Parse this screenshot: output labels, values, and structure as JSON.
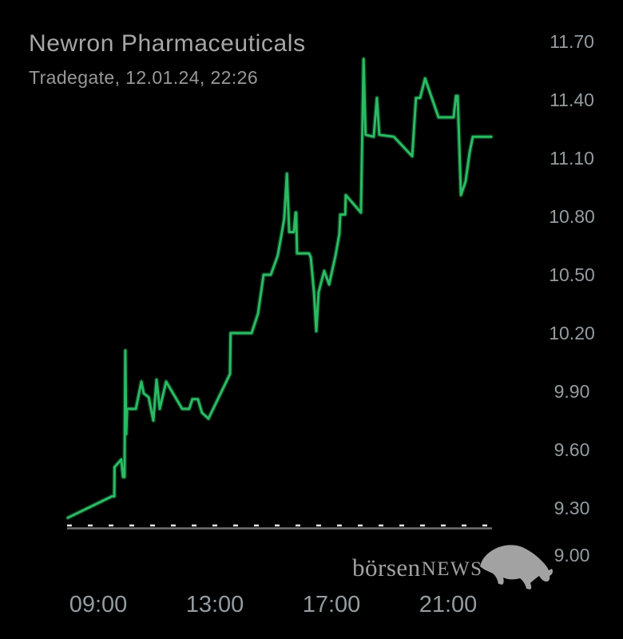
{
  "header": {
    "title": "Newron Pharmaceuticals",
    "subtitle": "Tradegate, 12.01.24, 22:26"
  },
  "watermark": {
    "text_primary": "börsen",
    "text_secondary": "NEWS",
    "icon": "bull-silhouette"
  },
  "colors": {
    "background": "#000000",
    "line": "#2abc63",
    "title": "#a7a7a7",
    "subtitle": "#989898",
    "axis_label": "#949ca0",
    "baseline": "#6f6f6f",
    "reference_dash": "#e4e4e4",
    "watermark": "#a2a2a2"
  },
  "chart_data": {
    "type": "line",
    "title": "Newron Pharmaceuticals",
    "subtitle": "Tradegate, 12.01.24, 22:26",
    "grid": false,
    "legend": false,
    "x_axis": {
      "kind": "time",
      "range_hours": [
        7.9,
        22.6
      ],
      "ticks": [
        {
          "label": "09:00",
          "hour": 9
        },
        {
          "label": "13:00",
          "hour": 13
        },
        {
          "label": "17:00",
          "hour": 17
        },
        {
          "label": "21:00",
          "hour": 21
        }
      ]
    },
    "y_axis": {
      "side": "right",
      "range": [
        9.0,
        11.7
      ],
      "ticks": [
        {
          "label": "11.70",
          "value": 11.7
        },
        {
          "label": "11.40",
          "value": 11.4
        },
        {
          "label": "11.10",
          "value": 11.1
        },
        {
          "label": "10.80",
          "value": 10.8
        },
        {
          "label": "10.50",
          "value": 10.5
        },
        {
          "label": "10.20",
          "value": 10.2
        },
        {
          "label": "9.90",
          "value": 9.9
        },
        {
          "label": "9.60",
          "value": 9.6
        },
        {
          "label": "9.30",
          "value": 9.3
        },
        {
          "label": "9.00",
          "value": 9.0
        }
      ]
    },
    "reference_line_value": 9.21,
    "series": [
      {
        "name": "price",
        "points": [
          [
            7.96,
            9.25
          ],
          [
            9.47,
            9.36
          ],
          [
            9.55,
            9.36
          ],
          [
            9.56,
            9.51
          ],
          [
            9.79,
            9.55
          ],
          [
            9.85,
            9.46
          ],
          [
            9.9,
            9.46
          ],
          [
            9.93,
            10.11
          ],
          [
            9.96,
            9.68
          ],
          [
            9.99,
            9.81
          ],
          [
            10.29,
            9.81
          ],
          [
            10.48,
            9.95
          ],
          [
            10.56,
            9.89
          ],
          [
            10.73,
            9.87
          ],
          [
            10.89,
            9.75
          ],
          [
            11.0,
            9.96
          ],
          [
            11.11,
            9.81
          ],
          [
            11.33,
            9.95
          ],
          [
            11.88,
            9.81
          ],
          [
            12.12,
            9.81
          ],
          [
            12.23,
            9.86
          ],
          [
            12.42,
            9.86
          ],
          [
            12.56,
            9.79
          ],
          [
            12.78,
            9.76
          ],
          [
            13.52,
            9.99
          ],
          [
            13.54,
            10.2
          ],
          [
            14.26,
            10.2
          ],
          [
            14.48,
            10.3
          ],
          [
            14.67,
            10.5
          ],
          [
            14.92,
            10.5
          ],
          [
            15.16,
            10.6
          ],
          [
            15.3,
            10.72
          ],
          [
            15.38,
            10.79
          ],
          [
            15.47,
            11.02
          ],
          [
            15.55,
            10.72
          ],
          [
            15.71,
            10.72
          ],
          [
            15.77,
            10.82
          ],
          [
            15.79,
            10.82
          ],
          [
            15.82,
            10.61
          ],
          [
            16.23,
            10.61
          ],
          [
            16.29,
            10.59
          ],
          [
            16.4,
            10.41
          ],
          [
            16.48,
            10.21
          ],
          [
            16.56,
            10.41
          ],
          [
            16.75,
            10.52
          ],
          [
            16.92,
            10.45
          ],
          [
            17.14,
            10.6
          ],
          [
            17.27,
            10.71
          ],
          [
            17.3,
            10.81
          ],
          [
            17.47,
            10.81
          ],
          [
            17.49,
            10.91
          ],
          [
            18.01,
            10.82
          ],
          [
            18.1,
            11.61
          ],
          [
            18.17,
            11.22
          ],
          [
            18.45,
            11.21
          ],
          [
            18.56,
            11.41
          ],
          [
            18.64,
            11.22
          ],
          [
            19.14,
            11.21
          ],
          [
            19.77,
            11.11
          ],
          [
            19.9,
            11.41
          ],
          [
            20.04,
            11.41
          ],
          [
            20.21,
            11.51
          ],
          [
            20.67,
            11.31
          ],
          [
            21.19,
            11.31
          ],
          [
            21.27,
            11.42
          ],
          [
            21.33,
            11.42
          ],
          [
            21.44,
            10.91
          ],
          [
            21.6,
            10.98
          ],
          [
            21.74,
            11.13
          ],
          [
            21.85,
            11.21
          ],
          [
            22.48,
            11.21
          ]
        ]
      }
    ]
  }
}
